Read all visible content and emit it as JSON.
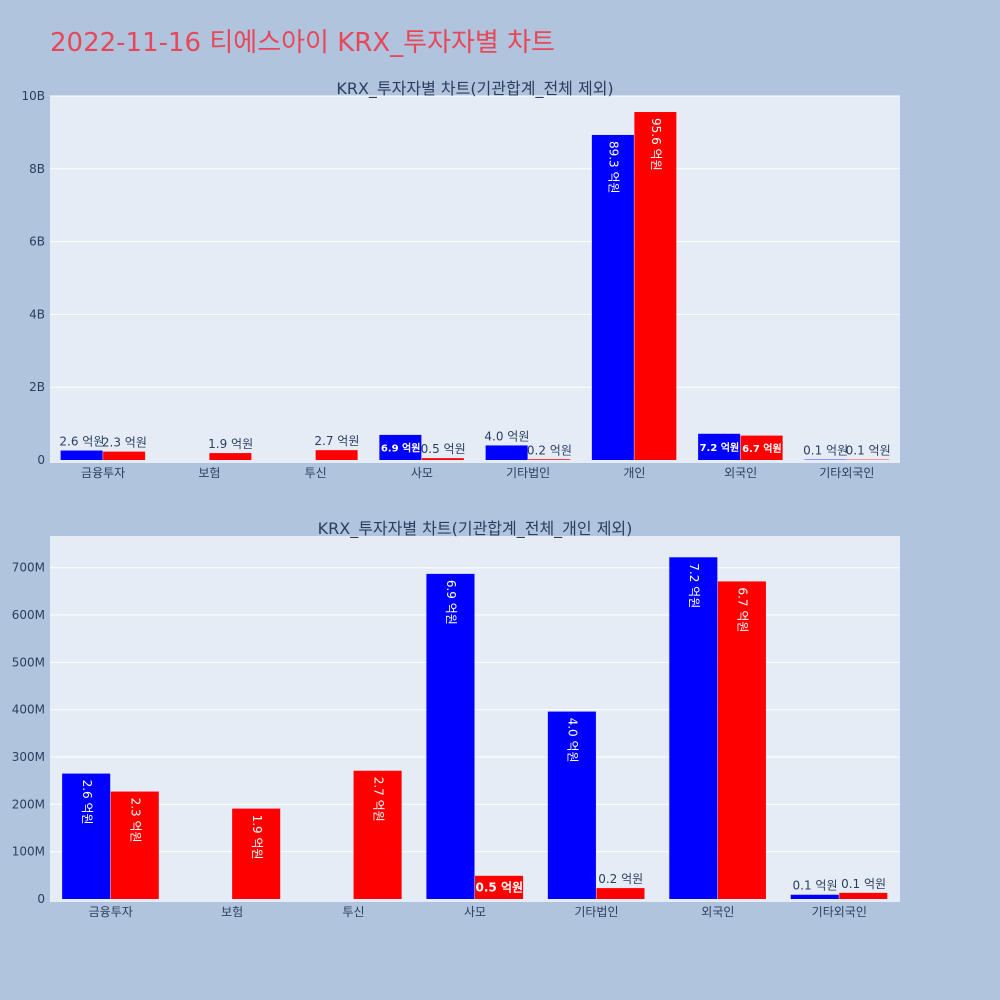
{
  "page_title": "2022-11-16 티에스아이 KRX_투자자별 차트",
  "colors": {
    "series_a": "#0000ff",
    "series_b": "#ff0000",
    "plot_bg": "#e5ecf6",
    "page_bg": "#b0c4de",
    "title": "#e8475a"
  },
  "chart_data": [
    {
      "type": "bar",
      "title": "KRX_투자자별 차트(기관합계_전체 제외)",
      "categories": [
        "금융투자",
        "보험",
        "투신",
        "사모",
        "기타법인",
        "개인",
        "외국인",
        "기타외국인"
      ],
      "series": [
        {
          "name": "series-blue",
          "color": "#0000ff",
          "values": [
            260000000,
            0,
            0,
            690000000,
            400000000,
            8930000000,
            720000000,
            10000000
          ],
          "labels": [
            "2.6 억원",
            "",
            "",
            "6.9 억원",
            "4.0 억원",
            "89.3 억원",
            "7.2 억원",
            "0.1 억원"
          ]
        },
        {
          "name": "series-red",
          "color": "#ff0000",
          "values": [
            230000000,
            190000000,
            270000000,
            50000000,
            20000000,
            9560000000,
            670000000,
            10000000
          ],
          "labels": [
            "2.3 억원",
            "1.9 억원",
            "2.7 억원",
            "0.5 억원",
            "0.2 억원",
            "95.6 억원",
            "6.7 억원",
            "0.1 억원"
          ]
        }
      ],
      "ylim": [
        0,
        10000000000
      ],
      "yticks": [
        0,
        2000000000,
        4000000000,
        6000000000,
        8000000000,
        10000000000
      ],
      "ytick_labels": [
        "0",
        "2B",
        "4B",
        "6B",
        "8B",
        "10B"
      ],
      "xlabel": "",
      "ylabel": ""
    },
    {
      "type": "bar",
      "title": "KRX_투자자별 차트(기관합계_전체_개인 제외)",
      "categories": [
        "금융투자",
        "보험",
        "투신",
        "사모",
        "기타법인",
        "외국인",
        "기타외국인"
      ],
      "series": [
        {
          "name": "series-blue",
          "color": "#0000ff",
          "values": [
            265000000,
            0,
            0,
            687000000,
            396000000,
            722000000,
            9000000
          ],
          "labels": [
            "2.6 억원",
            "",
            "",
            "6.9 억원",
            "4.0 억원",
            "7.2 억원",
            "0.1 억원"
          ]
        },
        {
          "name": "series-red",
          "color": "#ff0000",
          "values": [
            227000000,
            191000000,
            271000000,
            49000000,
            23000000,
            671000000,
            13000000
          ],
          "labels": [
            "2.3 억원",
            "1.9 억원",
            "2.7 억원",
            "0.5 억원",
            "0.2 억원",
            "6.7 억원",
            "0.1 억원"
          ]
        }
      ],
      "ylim": [
        0,
        767000000
      ],
      "yticks": [
        0,
        100000000,
        200000000,
        300000000,
        400000000,
        500000000,
        600000000,
        700000000
      ],
      "ytick_labels": [
        "0",
        "100M",
        "200M",
        "300M",
        "400M",
        "500M",
        "600M",
        "700M"
      ],
      "xlabel": "",
      "ylabel": ""
    }
  ]
}
